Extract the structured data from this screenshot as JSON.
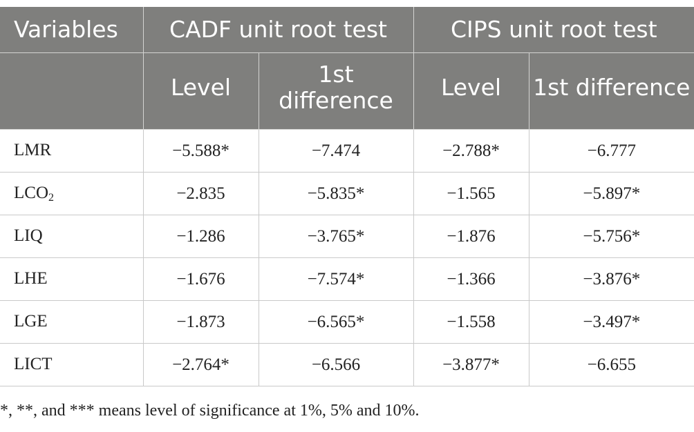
{
  "table": {
    "header_top": {
      "variables": "Variables",
      "cadf": "CADF unit root test",
      "cips": "CIPS unit root test"
    },
    "header_sub": {
      "cadf_level": "Level",
      "cadf_diff": "1st difference",
      "cips_level": "Level",
      "cips_diff": "1st difference"
    },
    "rows": [
      {
        "label": "LMR",
        "sub": "",
        "cadf_level": "−5.588*",
        "cadf_diff": "−7.474",
        "cips_level": "−2.788*",
        "cips_diff": "−6.777"
      },
      {
        "label": "LCO",
        "sub": "2",
        "cadf_level": "−2.835",
        "cadf_diff": "−5.835*",
        "cips_level": "−1.565",
        "cips_diff": "−5.897*"
      },
      {
        "label": "LIQ",
        "sub": "",
        "cadf_level": "−1.286",
        "cadf_diff": "−3.765*",
        "cips_level": "−1.876",
        "cips_diff": "−5.756*"
      },
      {
        "label": "LHE",
        "sub": "",
        "cadf_level": "−1.676",
        "cadf_diff": "−7.574*",
        "cips_level": "−1.366",
        "cips_diff": "−3.876*"
      },
      {
        "label": "LGE",
        "sub": "",
        "cadf_level": "−1.873",
        "cadf_diff": "−6.565*",
        "cips_level": "−1.558",
        "cips_diff": "−3.497*"
      },
      {
        "label": "LICT",
        "sub": "",
        "cadf_level": "−2.764*",
        "cadf_diff": "−6.566",
        "cips_level": "−3.877*",
        "cips_diff": "−6.655"
      }
    ]
  },
  "footnote": "*, **, and *** means level of significance at 1%, 5% and 10%."
}
